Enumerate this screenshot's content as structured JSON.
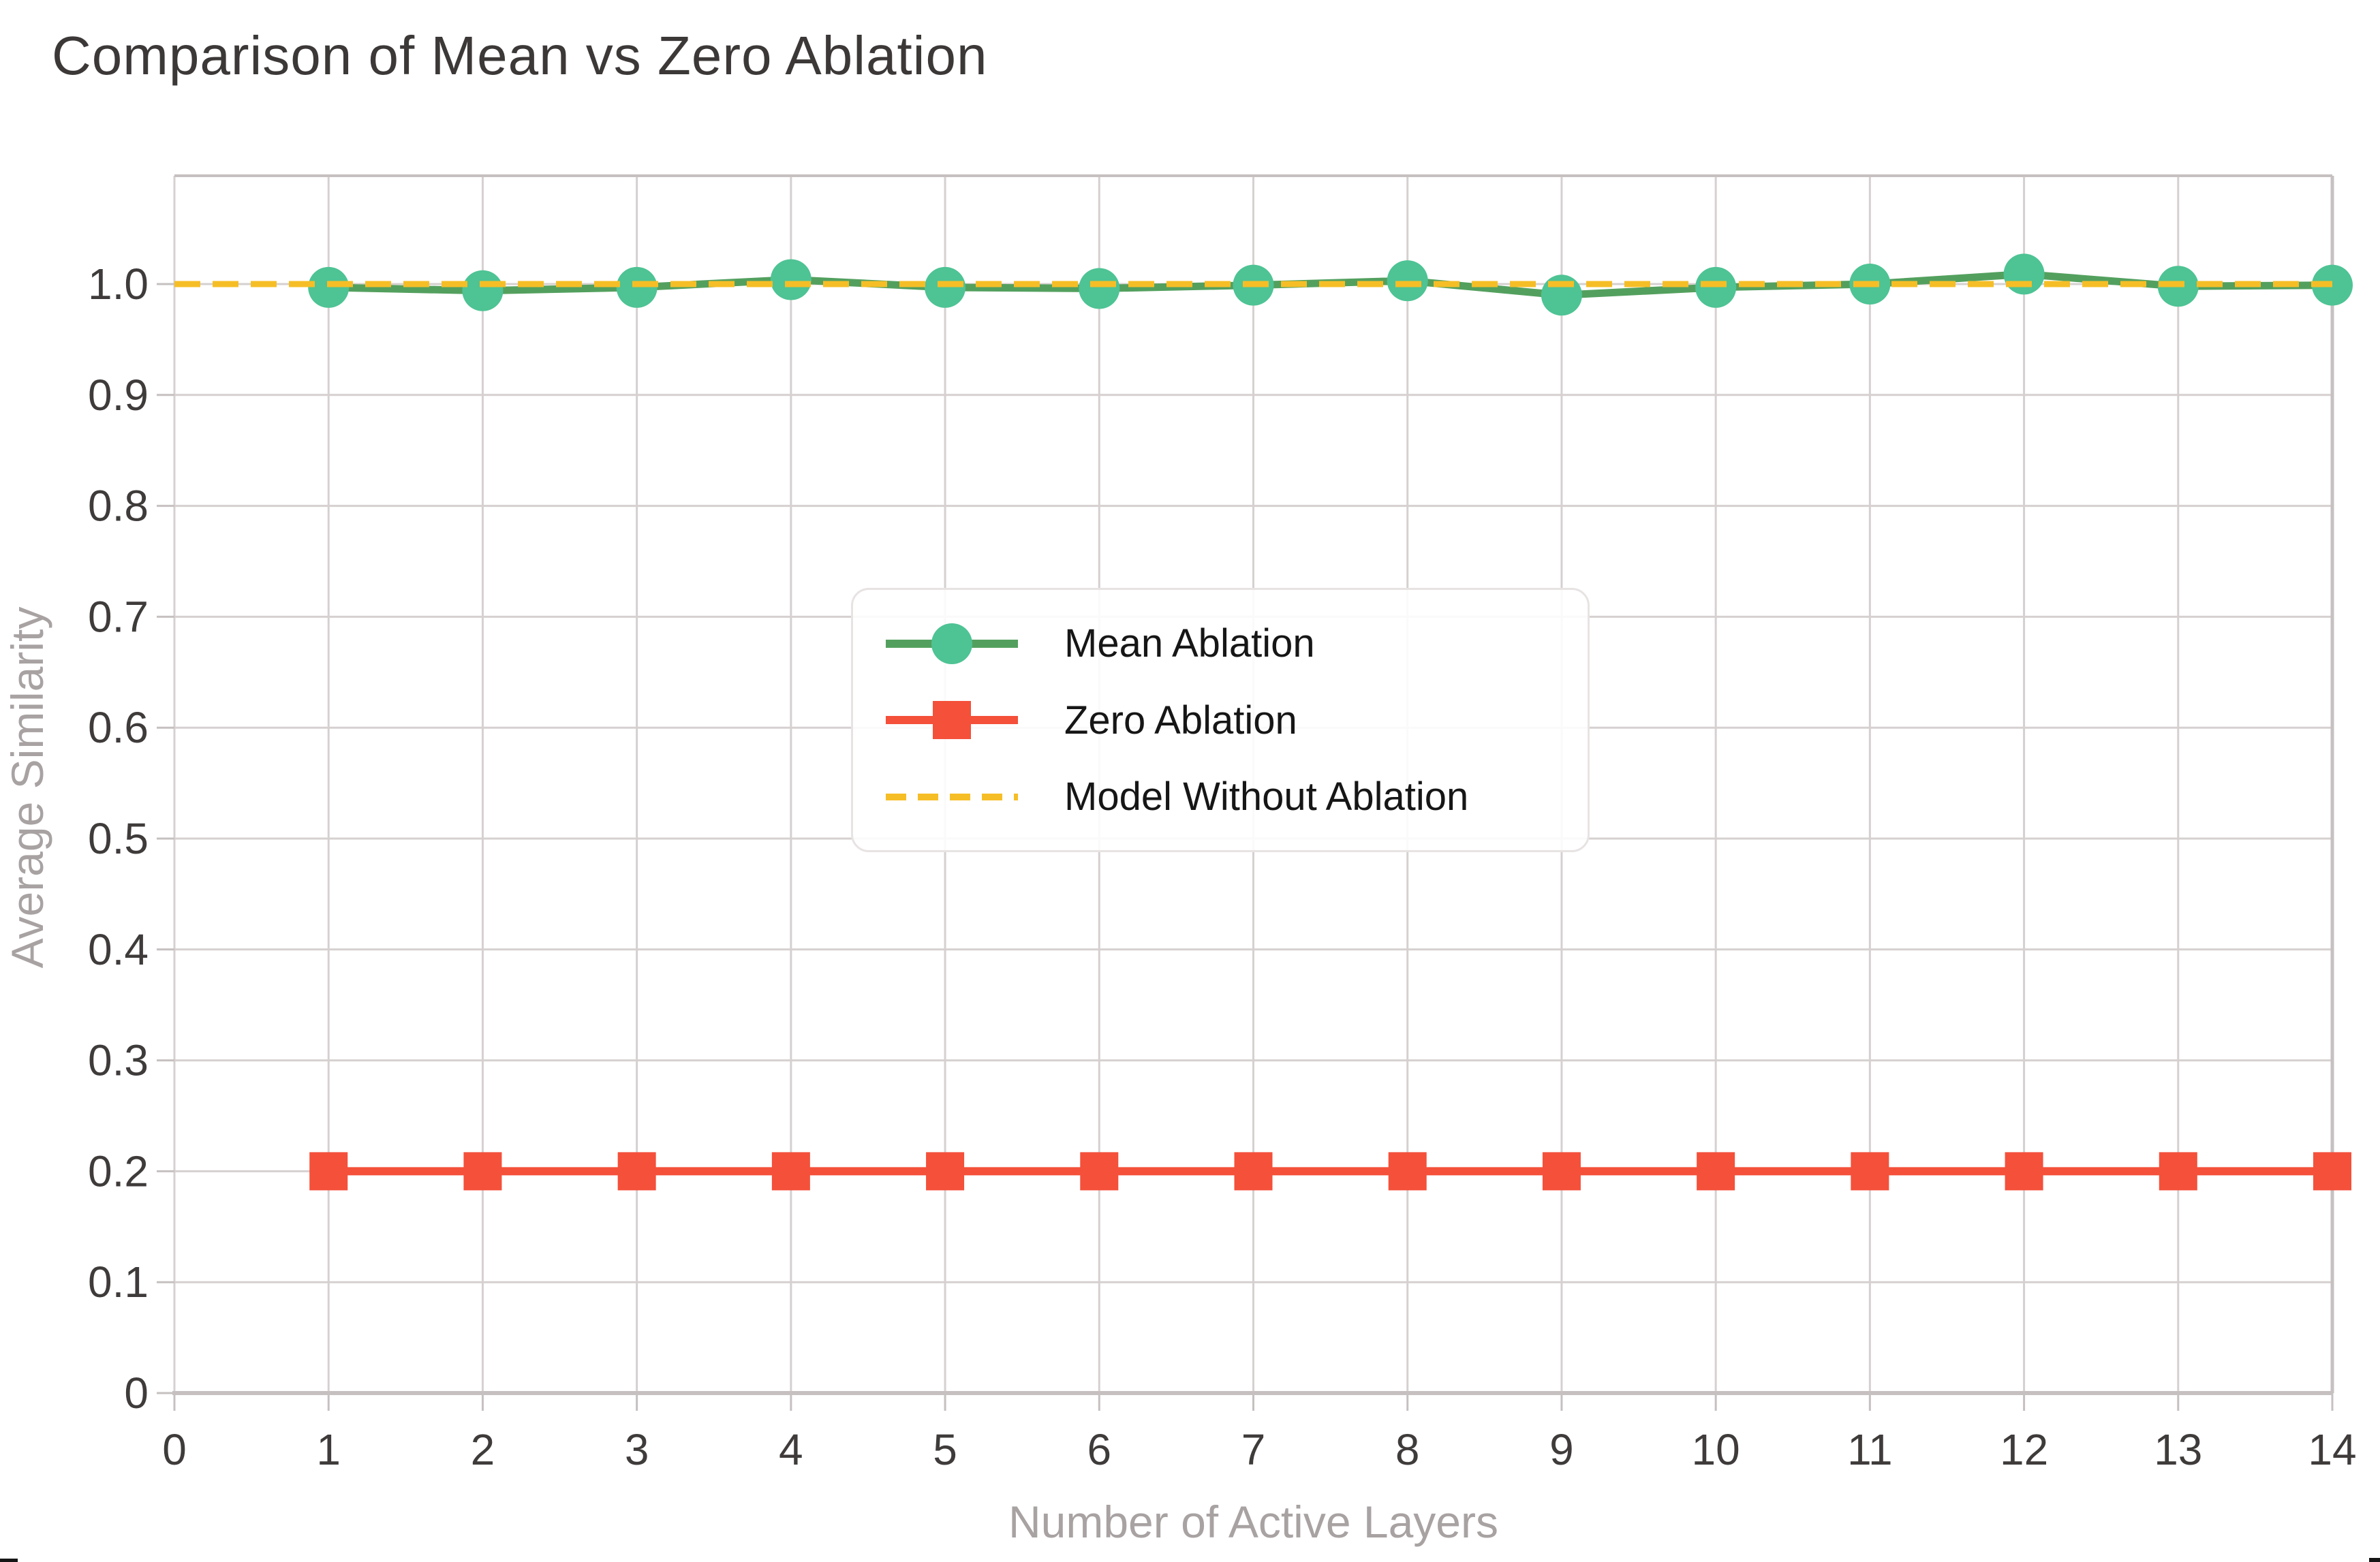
{
  "title": "Comparison of Mean vs Zero Ablation",
  "axes": {
    "x_title": "Number of Active Layers",
    "y_title": "Average Similarity",
    "x_tick_labels": [
      "0",
      "1",
      "2",
      "3",
      "4",
      "5",
      "6",
      "7",
      "8",
      "9",
      "10",
      "11",
      "12",
      "13",
      "14"
    ],
    "y_tick_labels": [
      "0",
      "0.1",
      "0.2",
      "0.3",
      "0.4",
      "0.5",
      "0.6",
      "0.7",
      "0.8",
      "0.9",
      "1.0"
    ]
  },
  "legend": {
    "items": [
      {
        "label": "Mean Ablation"
      },
      {
        "label": "Zero Ablation"
      },
      {
        "label": "Model Without Ablation"
      }
    ]
  },
  "chart_data": {
    "type": "line",
    "title": "Comparison of Mean vs Zero Ablation",
    "xlabel": "Number of Active Layers",
    "ylabel": "Average Similarity",
    "x": [
      1,
      2,
      3,
      4,
      5,
      6,
      7,
      8,
      9,
      10,
      11,
      12,
      13,
      14
    ],
    "series": [
      {
        "name": "Mean Ablation",
        "marker": "circle",
        "dash": false,
        "line_color": "#53a05e",
        "marker_color": "#4ec394",
        "values": [
          0.997,
          0.994,
          0.997,
          1.004,
          0.997,
          0.996,
          0.999,
          1.003,
          0.99,
          0.997,
          1.0,
          1.009,
          0.998,
          0.999
        ]
      },
      {
        "name": "Zero Ablation",
        "marker": "square",
        "dash": false,
        "line_color": "#f4503a",
        "marker_color": "#f4503a",
        "values": [
          0.2,
          0.2,
          0.2,
          0.2,
          0.2,
          0.2,
          0.2,
          0.2,
          0.2,
          0.2,
          0.2,
          0.2,
          0.2,
          0.2
        ]
      },
      {
        "name": "Model Without Ablation",
        "marker": "none",
        "dash": true,
        "line_color": "#f6be26",
        "constant": 1.0
      }
    ],
    "xlim": [
      0,
      14
    ],
    "ylim": [
      0,
      1.098
    ],
    "x_ticks": [
      0,
      1,
      2,
      3,
      4,
      5,
      6,
      7,
      8,
      9,
      10,
      11,
      12,
      13,
      14
    ],
    "y_ticks": [
      0,
      0.1,
      0.2,
      0.3,
      0.4,
      0.5,
      0.6,
      0.7,
      0.8,
      0.9,
      1.0
    ],
    "grid": true,
    "legend_position": "center"
  },
  "colors": {
    "title_text": "#3c3838",
    "tick_text": "#3f3b3b",
    "axis_title_text": "#a8a2a2",
    "gridline": "#d6d0d0",
    "spine": "#c6c0c0",
    "legend_border": "#e8e3e3",
    "mean_ablation_line": "#53a05e",
    "mean_ablation_marker": "#4ec394",
    "zero_ablation": "#f4503a",
    "model_without_ablation": "#f6be26",
    "bottom_sliver": "#151515"
  }
}
